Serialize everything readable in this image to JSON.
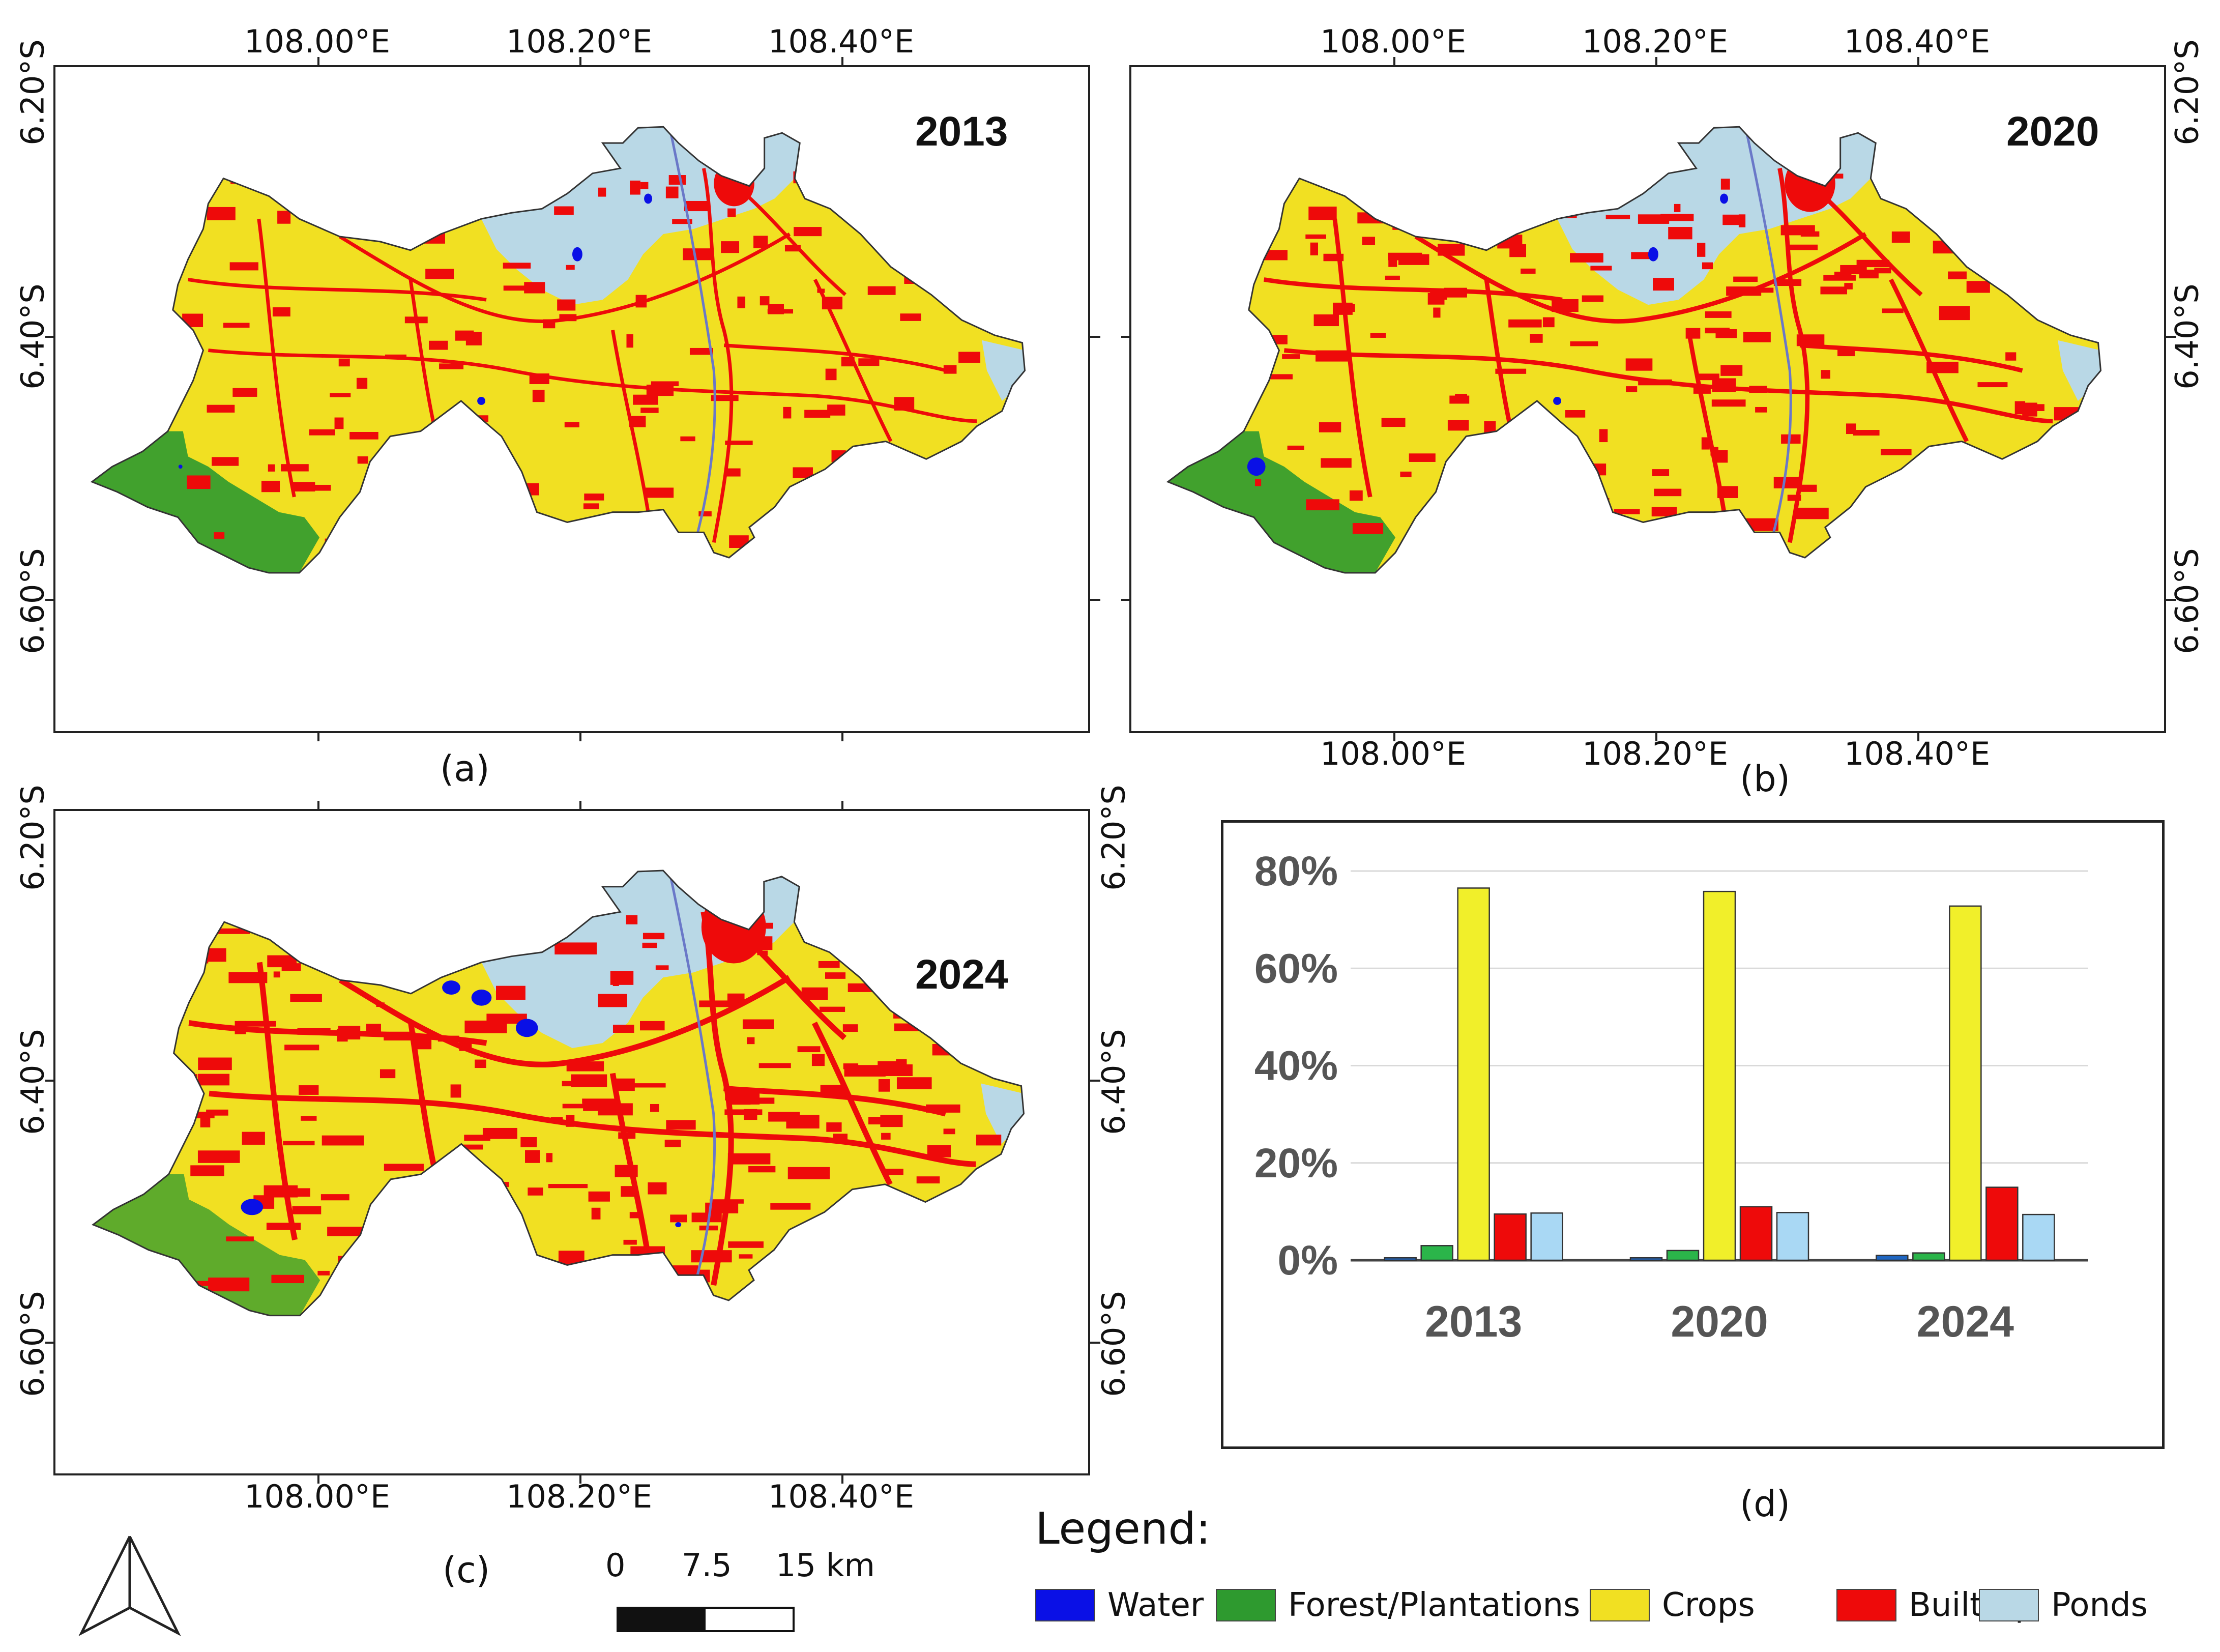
{
  "colors": {
    "water": "#0a10e6",
    "forest": "#2e9a2f",
    "crops": "#f1e022",
    "builtup": "#ee0a0a",
    "ponds": "#b9d8e6"
  },
  "panels": {
    "a": {
      "year": "2013",
      "caption": "(a)"
    },
    "b": {
      "year": "2020",
      "caption": "(b)"
    },
    "c": {
      "year": "2024",
      "caption": "(c)"
    },
    "d": {
      "caption": "(d)"
    }
  },
  "axes": {
    "lon_labels": [
      "108.00°E",
      "108.20°E",
      "108.40°E"
    ],
    "lat_labels": [
      "6.20°S",
      "6.40°S",
      "6.60°S"
    ]
  },
  "legend": {
    "title": "Legend:",
    "items": [
      {
        "label": "Water",
        "color_key": "water"
      },
      {
        "label": "Forest/Plantations",
        "color_key": "forest"
      },
      {
        "label": "Crops",
        "color_key": "crops"
      },
      {
        "label": "Built-up",
        "color_key": "builtup"
      },
      {
        "label": "Ponds",
        "color_key": "ponds"
      }
    ]
  },
  "scale_bar": {
    "ticks": [
      "0",
      "7.5",
      "15 km"
    ]
  },
  "north_arrow": {
    "icon": "north-arrow-icon"
  },
  "chart_data": {
    "type": "bar",
    "title": "",
    "xlabel": "",
    "ylabel": "",
    "categories": [
      "2013",
      "2020",
      "2024"
    ],
    "ylim": [
      0,
      80
    ],
    "yticks": [
      "0%",
      "20%",
      "40%",
      "60%",
      "80%"
    ],
    "series": [
      {
        "name": "Water",
        "color": "#1f66c1",
        "values": [
          0.5,
          0.5,
          1.0
        ]
      },
      {
        "name": "Forest/Plantations",
        "color": "#2bb54a",
        "values": [
          3.0,
          2.0,
          1.5
        ]
      },
      {
        "name": "Crops",
        "color": "#f1ef2a",
        "values": [
          76.5,
          75.8,
          72.8
        ]
      },
      {
        "name": "Built-up",
        "color": "#ee0a0a",
        "values": [
          9.5,
          11.0,
          15.0
        ]
      },
      {
        "name": "Ponds",
        "color": "#a9d8f4",
        "values": [
          9.7,
          9.8,
          9.4
        ]
      }
    ]
  }
}
